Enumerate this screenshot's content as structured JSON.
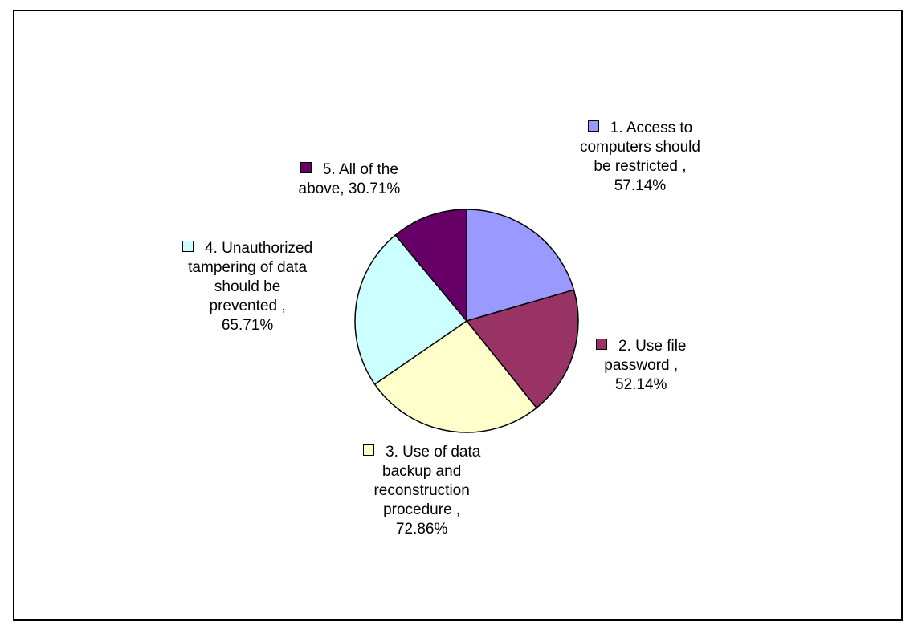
{
  "chart_data": {
    "type": "pie",
    "slices": [
      {
        "name": "1. Access to computers should be restricted",
        "value": 57.14,
        "label": "57.14%",
        "color": "#9999FF",
        "lines": [
          "1. Access to",
          "computers should",
          "be restricted ,",
          "57.14%"
        ]
      },
      {
        "name": "2. Use file password",
        "value": 52.14,
        "label": "52.14%",
        "color": "#993366",
        "lines": [
          "2. Use file",
          "password ,",
          "52.14%"
        ]
      },
      {
        "name": "3. Use of data backup and reconstruction procedure",
        "value": 72.86,
        "label": "72.86%",
        "color": "#FFFFCC",
        "lines": [
          "3. Use of data",
          "backup and",
          "reconstruction",
          "procedure ,",
          "72.86%"
        ]
      },
      {
        "name": "4. Unauthorized tampering of data should be prevented",
        "value": 65.71,
        "label": "65.71%",
        "color": "#CCFFFF",
        "lines": [
          "4. Unauthorized",
          "tampering of data",
          "should be",
          "prevented ,",
          "65.71%"
        ]
      },
      {
        "name": "5. All of the above",
        "value": 30.71,
        "label": "30.71%",
        "color": "#660066",
        "lines": [
          "5. All of the",
          "above, 30.71%"
        ]
      }
    ],
    "start_angle": "12 o'clock",
    "direction": "clockwise",
    "legend": "none",
    "data_labels": "outside, with color swatch",
    "border": true
  }
}
